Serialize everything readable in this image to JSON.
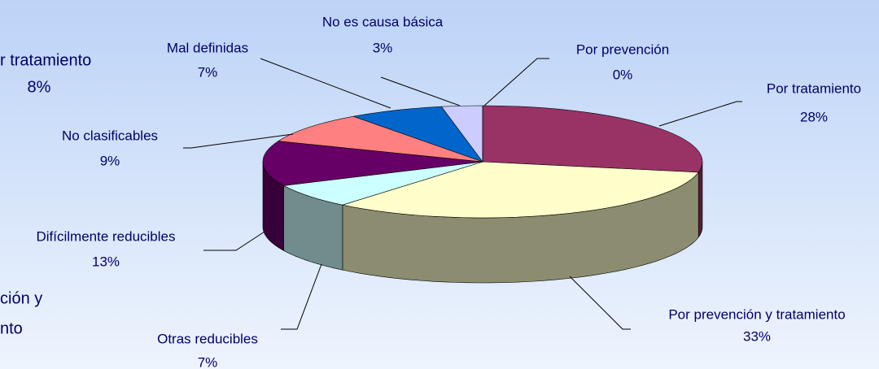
{
  "chart_data": {
    "type": "pie3d",
    "categories": [
      "Por tratamiento",
      "Por prevención y tratamiento",
      "Otras reducibles",
      "Difícilmente reducibles",
      "No clasificables",
      "Mal definidas",
      "No es causa básica",
      "Por prevención"
    ],
    "values": [
      28,
      33,
      7,
      13,
      9,
      7,
      3,
      0
    ],
    "value_labels": [
      "28%",
      "33%",
      "7%",
      "13%",
      "9%",
      "7%",
      "3%",
      "0%"
    ],
    "colors": [
      "#993366",
      "#ffffcc",
      "#ccffff",
      "#660066",
      "#ff8080",
      "#0066cc",
      "#ccccff",
      "#ffff99"
    ],
    "annotations": [
      "r tratamiento",
      "8%",
      "ción y",
      "nto"
    ]
  }
}
